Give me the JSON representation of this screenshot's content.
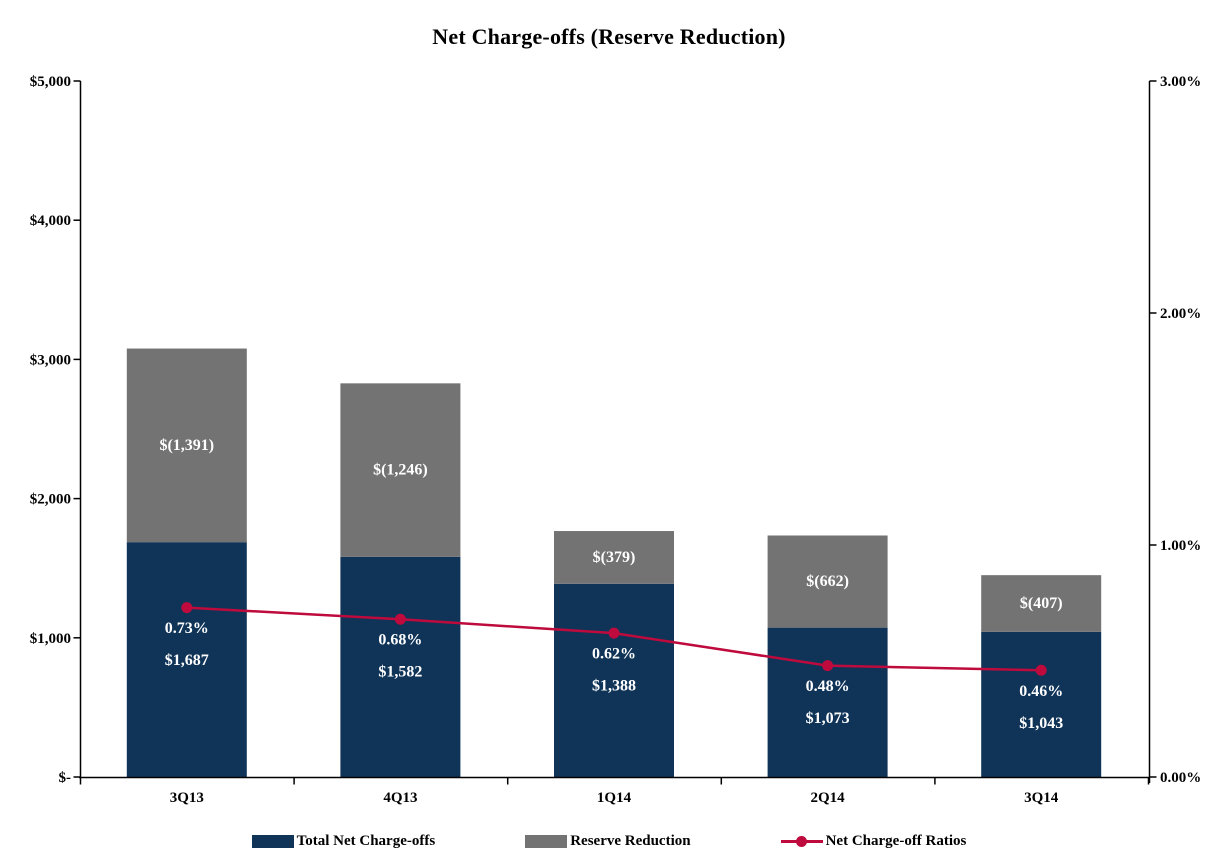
{
  "chart_data": {
    "type": "combo",
    "bar_mode": "stacked",
    "title": "Net Charge-offs (Reserve Reduction)",
    "categories": [
      "3Q13",
      "4Q13",
      "1Q14",
      "2Q14",
      "3Q14"
    ],
    "series": [
      {
        "name": "Total Net Charge-offs",
        "type": "bar",
        "axis": "left",
        "color": "#103458",
        "values": [
          1687,
          1582,
          1388,
          1073,
          1043
        ],
        "labels": [
          "$1,687",
          "$1,582",
          "$1,388",
          "$1,073",
          "$1,043"
        ]
      },
      {
        "name": "Reserve Reduction",
        "type": "bar",
        "axis": "left",
        "color": "#737373",
        "values": [
          1391,
          1246,
          379,
          662,
          407
        ],
        "labels": [
          "$(1,391)",
          "$(1,246)",
          "$(379)",
          "$(662)",
          "$(407)"
        ]
      },
      {
        "name": "Net Charge-off Ratios",
        "type": "line",
        "axis": "right",
        "color": "#BE0A3C",
        "values": [
          0.73,
          0.68,
          0.62,
          0.48,
          0.46
        ],
        "labels": [
          "0.73%",
          "0.68%",
          "0.62%",
          "0.48%",
          "0.46%"
        ]
      }
    ],
    "left_axis": {
      "min": 0,
      "max": 5000,
      "ticks": [
        {
          "v": 5000,
          "label": "$5,000"
        },
        {
          "v": 4000,
          "label": "$4,000"
        },
        {
          "v": 3000,
          "label": "$3,000"
        },
        {
          "v": 2000,
          "label": "$2,000"
        },
        {
          "v": 1000,
          "label": "$1,000"
        },
        {
          "v": 0,
          "label": "$-"
        }
      ]
    },
    "right_axis": {
      "min": 0,
      "max": 3,
      "ticks": [
        {
          "v": 3,
          "label": "3.00%"
        },
        {
          "v": 2,
          "label": "2.00%"
        },
        {
          "v": 1,
          "label": "1.00%"
        },
        {
          "v": 0,
          "label": "0.00%"
        }
      ]
    },
    "grid": false,
    "legend_position": "bottom",
    "bar_label_color": "#FFFFFF",
    "axis_color": "#000000"
  }
}
